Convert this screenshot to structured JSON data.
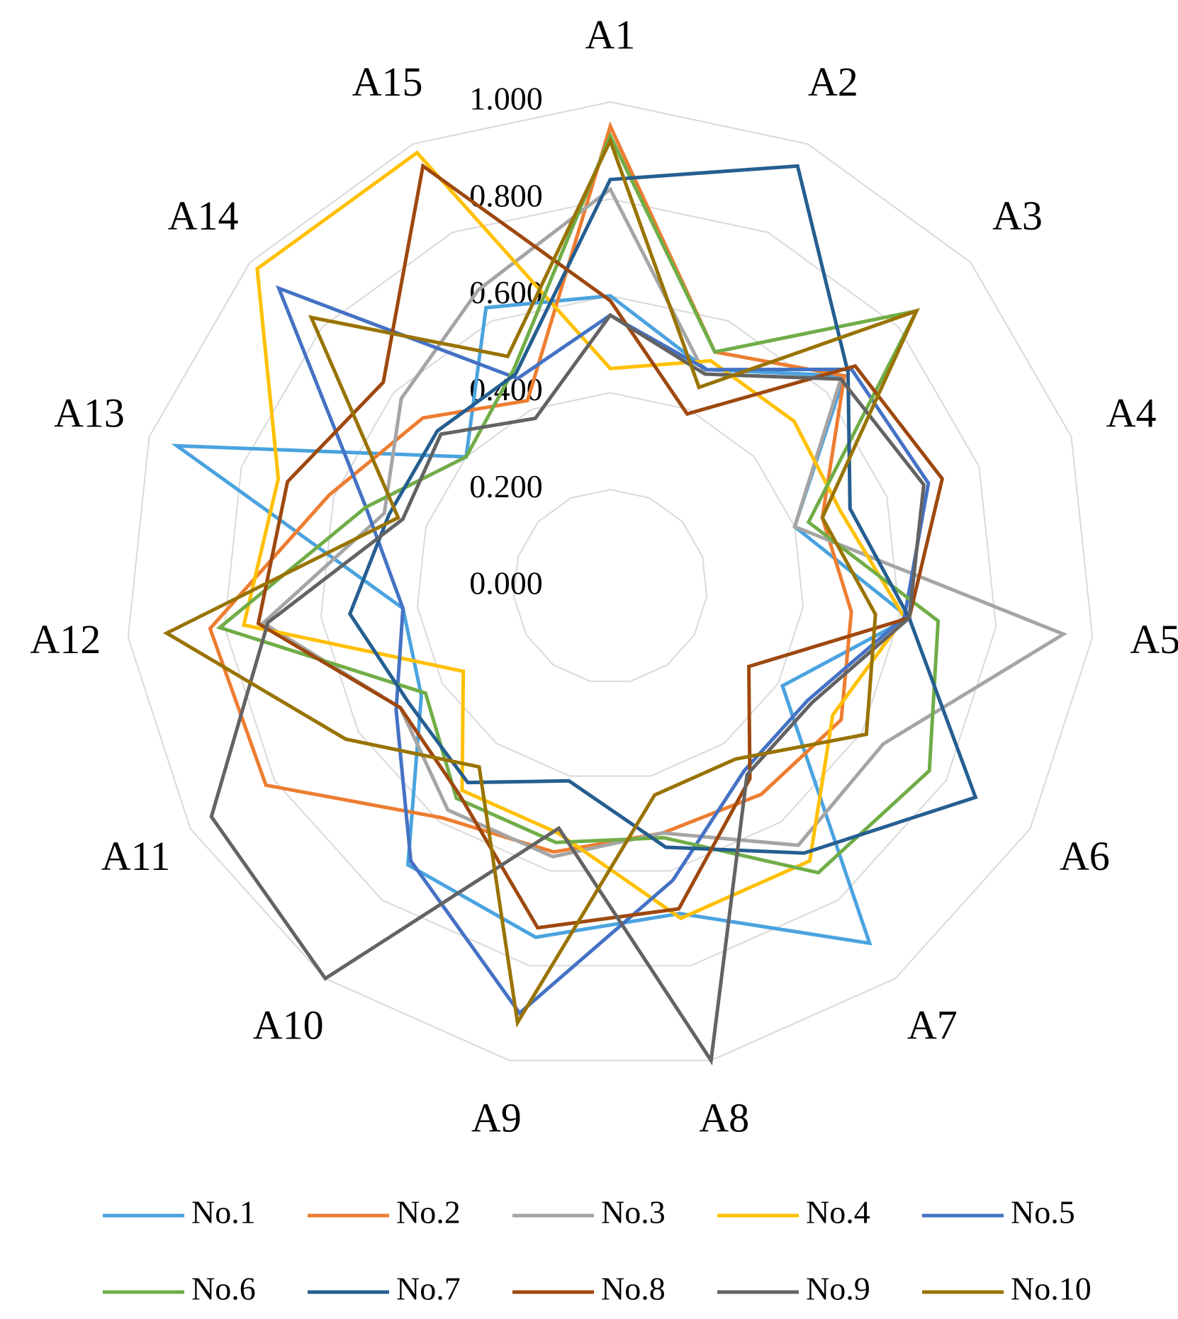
{
  "chart_data": {
    "type": "radar",
    "categories": [
      "A1",
      "A2",
      "A3",
      "A4",
      "A5",
      "A6",
      "A7",
      "A8",
      "A9",
      "A10",
      "A11",
      "A12",
      "A13",
      "A14",
      "A15"
    ],
    "ylim": [
      0,
      1
    ],
    "yticks": [
      {
        "value": 0,
        "label": "0.000"
      },
      {
        "value": 0.2,
        "label": "0.200"
      },
      {
        "value": 0.4,
        "label": "0.400"
      },
      {
        "value": 0.6,
        "label": "0.600"
      },
      {
        "value": 0.8,
        "label": "0.800"
      },
      {
        "value": 1,
        "label": "1.000"
      }
    ],
    "grid": true,
    "legend": "bottom",
    "series": [
      {
        "name": "No.1",
        "color": "#4aa3df",
        "values": [
          0.6,
          0.49,
          0.65,
          0.4,
          0.62,
          0.41,
          0.91,
          0.69,
          0.74,
          0.71,
          0.45,
          0.43,
          0.94,
          0.4,
          0.63
        ]
      },
      {
        "name": "No.2",
        "color": "#ed7d31",
        "values": [
          0.95,
          0.53,
          0.65,
          0.46,
          0.5,
          0.55,
          0.53,
          0.52,
          0.56,
          0.59,
          0.82,
          0.83,
          0.61,
          0.52,
          0.42
        ]
      },
      {
        "name": "No.3",
        "color": "#a5a5a5",
        "values": [
          0.82,
          0.48,
          0.64,
          0.4,
          0.94,
          0.65,
          0.66,
          0.52,
          0.57,
          0.57,
          0.5,
          0.72,
          0.49,
          0.58,
          0.67
        ]
      },
      {
        "name": "No.4",
        "color": "#ffc000",
        "values": [
          0.45,
          0.51,
          0.51,
          0.5,
          0.61,
          0.53,
          0.7,
          0.7,
          0.52,
          0.52,
          0.35,
          0.76,
          0.72,
          0.98,
          0.98
        ]
      },
      {
        "name": "No.5",
        "color": "#4472c4",
        "values": [
          0.56,
          0.49,
          0.67,
          0.69,
          0.61,
          0.47,
          0.47,
          0.62,
          0.9,
          0.7,
          0.51,
          0.43,
          0.53,
          0.92,
          0.47
        ]
      },
      {
        "name": "No.6",
        "color": "#70ad47",
        "values": [
          0.93,
          0.53,
          0.85,
          0.43,
          0.68,
          0.76,
          0.73,
          0.53,
          0.54,
          0.54,
          0.44,
          0.81,
          0.53,
          0.4,
          0.49
        ]
      },
      {
        "name": "No.7",
        "color": "#255e91",
        "values": [
          0.84,
          0.95,
          0.66,
          0.52,
          0.62,
          0.87,
          0.68,
          0.55,
          0.41,
          0.5,
          0.48,
          0.54,
          0.48,
          0.48,
          0.48
        ]
      },
      {
        "name": "No.8",
        "color": "#9e480e",
        "values": [
          0.59,
          0.39,
          0.68,
          0.72,
          0.62,
          0.33,
          0.49,
          0.68,
          0.72,
          0.53,
          0.5,
          0.73,
          0.7,
          0.63,
          0.95
        ]
      },
      {
        "name": "No.9",
        "color": "#636363",
        "values": [
          0.56,
          0.48,
          0.64,
          0.68,
          0.62,
          0.48,
          0.48,
          1.0,
          0.51,
          1.0,
          0.95,
          0.71,
          0.45,
          0.47,
          0.38
        ]
      },
      {
        "name": "No.10",
        "color": "#997300",
        "values": [
          0.92,
          0.45,
          0.85,
          0.46,
          0.55,
          0.61,
          0.44,
          0.44,
          0.92,
          0.46,
          0.63,
          0.92,
          0.46,
          0.83,
          0.52
        ]
      }
    ]
  }
}
